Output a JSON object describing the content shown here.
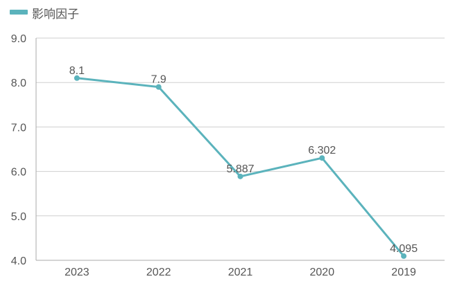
{
  "colors": {
    "series": "#5bb3bc",
    "grid": "#cfcfcf",
    "axis": "#aaaaaa",
    "text": "#555555"
  },
  "chart_data": {
    "type": "line",
    "categories": [
      "2023",
      "2022",
      "2021",
      "2020",
      "2019"
    ],
    "series": [
      {
        "name": "影响因子",
        "values": [
          8.1,
          7.9,
          5.887,
          6.302,
          4.095
        ]
      }
    ],
    "data_labels": [
      "8.1",
      "7.9",
      "5.887",
      "6.302",
      "4.095"
    ],
    "ylim": [
      4.0,
      9.0
    ],
    "yticks": [
      "4.0",
      "5.0",
      "6.0",
      "7.0",
      "8.0",
      "9.0"
    ],
    "grid": true,
    "legend": "top-left"
  }
}
